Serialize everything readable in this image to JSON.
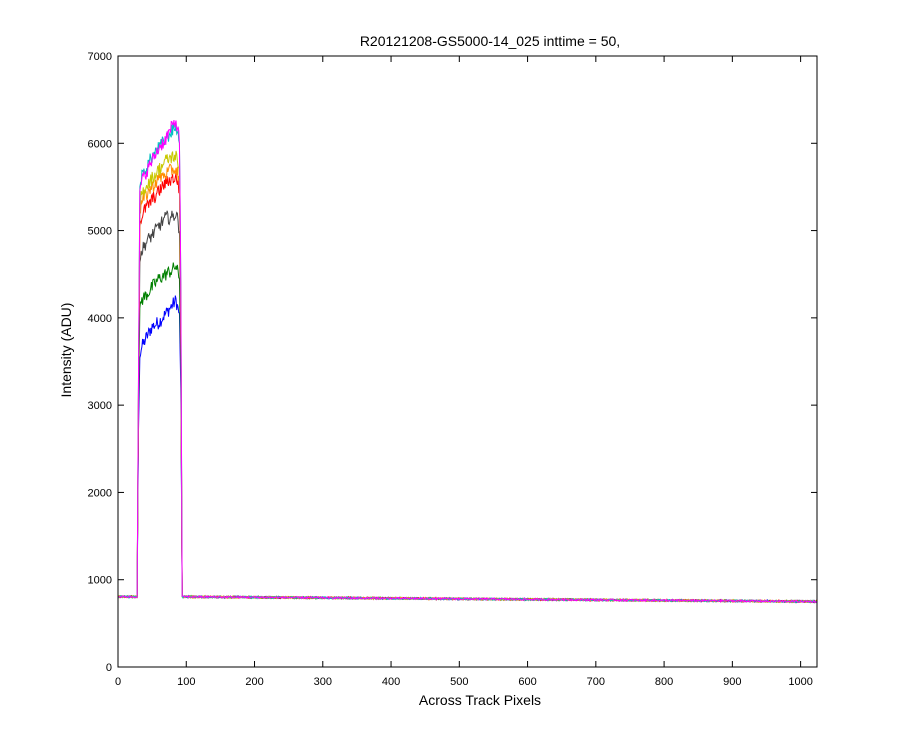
{
  "chart_data": {
    "type": "line",
    "title": "R20121208-GS5000-14_025 inttime = 50,",
    "xlabel": "Across Track Pixels",
    "ylabel": "Intensity (ADU)",
    "xlim": [
      0,
      1024
    ],
    "ylim": [
      0,
      7000
    ],
    "x_ticks": [
      0,
      100,
      200,
      300,
      400,
      500,
      600,
      700,
      800,
      900,
      1000
    ],
    "y_ticks": [
      0,
      1000,
      2000,
      3000,
      4000,
      5000,
      6000,
      7000
    ],
    "grid": false,
    "legend": "none",
    "baseline": {
      "x": [
        0,
        1024
      ],
      "y": [
        805,
        750
      ]
    },
    "signal_region": {
      "x_start": 30,
      "x_end": 95
    },
    "series": [
      {
        "color": "#0000ff",
        "x": [
          0,
          28,
          30,
          32,
          34,
          40,
          50,
          60,
          70,
          80,
          85,
          88,
          90,
          91,
          92,
          93,
          94,
          95,
          1024
        ],
        "y": [
          805,
          805,
          2700,
          3550,
          3650,
          3750,
          3900,
          3950,
          4050,
          4150,
          4200,
          4100,
          4050,
          3600,
          3200,
          2000,
          810,
          805,
          750
        ]
      },
      {
        "color": "#008000",
        "x": [
          0,
          28,
          30,
          32,
          34,
          40,
          50,
          60,
          70,
          80,
          85,
          88,
          90,
          91,
          92,
          93,
          94,
          95,
          1024
        ],
        "y": [
          805,
          805,
          2900,
          4100,
          4200,
          4250,
          4350,
          4450,
          4500,
          4550,
          4600,
          4500,
          4450,
          3900,
          3400,
          2100,
          810,
          805,
          750
        ]
      },
      {
        "color": "#444444",
        "x": [
          0,
          28,
          30,
          32,
          34,
          40,
          50,
          60,
          70,
          80,
          85,
          88,
          90,
          91,
          92,
          93,
          94,
          95,
          1024
        ],
        "y": [
          805,
          805,
          3000,
          4650,
          4750,
          4850,
          4950,
          5050,
          5150,
          5150,
          5200,
          5100,
          5000,
          4400,
          3700,
          2200,
          810,
          805,
          750
        ]
      },
      {
        "color": "#ff0000",
        "x": [
          0,
          28,
          30,
          32,
          34,
          40,
          50,
          60,
          70,
          80,
          85,
          88,
          90,
          91,
          92,
          93,
          94,
          95,
          1024
        ],
        "y": [
          805,
          805,
          3100,
          5050,
          5150,
          5250,
          5350,
          5450,
          5550,
          5600,
          5600,
          5550,
          5450,
          4800,
          4000,
          2300,
          810,
          805,
          750
        ]
      },
      {
        "color": "#ff8c00",
        "x": [
          0,
          28,
          30,
          32,
          34,
          40,
          50,
          60,
          70,
          80,
          85,
          88,
          90,
          91,
          92,
          93,
          94,
          95,
          1024
        ],
        "y": [
          805,
          805,
          3150,
          5200,
          5300,
          5400,
          5500,
          5600,
          5650,
          5700,
          5700,
          5650,
          5550,
          4900,
          4100,
          2350,
          810,
          805,
          750
        ]
      },
      {
        "color": "#c8c800",
        "x": [
          0,
          28,
          30,
          32,
          34,
          40,
          50,
          60,
          70,
          80,
          85,
          88,
          90,
          91,
          92,
          93,
          94,
          95,
          1024
        ],
        "y": [
          805,
          805,
          3200,
          5300,
          5400,
          5500,
          5600,
          5700,
          5800,
          5850,
          5850,
          5750,
          5650,
          5000,
          4200,
          2400,
          810,
          805,
          750
        ]
      },
      {
        "color": "#00bfbf",
        "x": [
          0,
          28,
          30,
          32,
          34,
          40,
          50,
          60,
          70,
          80,
          85,
          88,
          90,
          91,
          92,
          93,
          94,
          95,
          1024
        ],
        "y": [
          805,
          805,
          3300,
          5500,
          5600,
          5700,
          5850,
          5950,
          6050,
          6150,
          6200,
          6100,
          6000,
          5300,
          4400,
          2500,
          810,
          805,
          750
        ]
      },
      {
        "color": "#ff00ff",
        "x": [
          0,
          28,
          30,
          32,
          34,
          40,
          50,
          60,
          70,
          80,
          85,
          88,
          90,
          91,
          92,
          93,
          94,
          95,
          1024
        ],
        "y": [
          805,
          805,
          3300,
          5450,
          5550,
          5650,
          5800,
          5950,
          6050,
          6200,
          6250,
          6150,
          6000,
          5300,
          4400,
          2500,
          810,
          805,
          750
        ]
      }
    ]
  }
}
